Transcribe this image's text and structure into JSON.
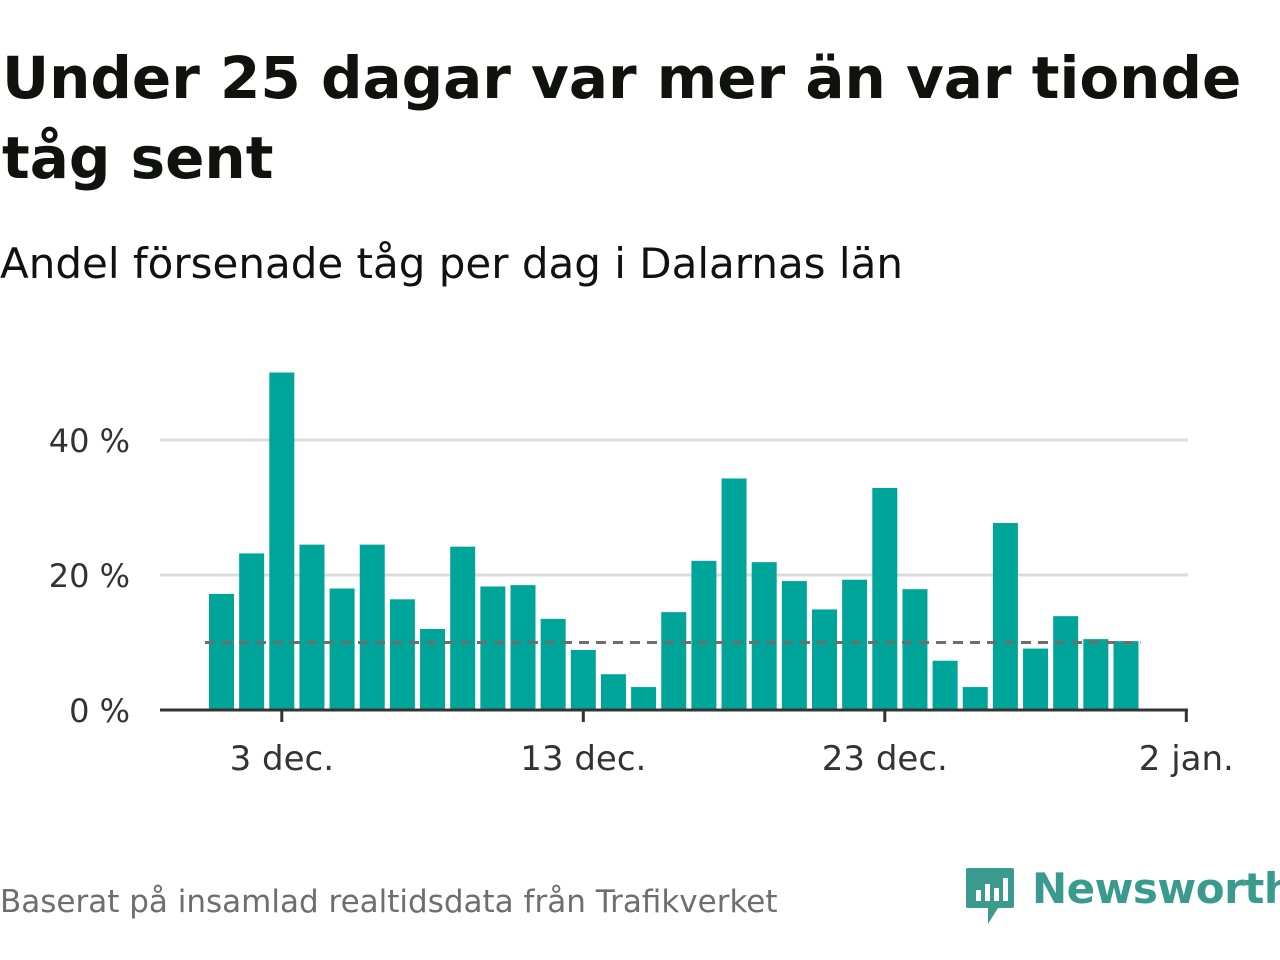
{
  "header": {
    "title": "Under 25 dagar var mer än var tionde tåg sent",
    "subtitle": "Andel försenade tåg per dag i Dalarnas län"
  },
  "footer": {
    "source": "Baserat på insamlad realtidsdata från Trafikverket",
    "logo_text": "Newsworthy"
  },
  "colors": {
    "bar": "#00a59a",
    "reference_line": "#6e6e6e",
    "gridline": "#dcdcdc",
    "axis": "#333333",
    "logo": "#3a9a8e"
  },
  "chart_data": {
    "type": "bar",
    "title": "Under 25 dagar var mer än var tionde tåg sent",
    "subtitle": "Andel försenade tåg per dag i Dalarnas län",
    "x_ticks": [
      {
        "label": "3 dec.",
        "index": 2
      },
      {
        "label": "13 dec.",
        "index": 12
      },
      {
        "label": "23 dec.",
        "index": 22
      },
      {
        "label": "2 jan.",
        "index": 32
      }
    ],
    "y_ticks": [
      {
        "label": "0 %",
        "value": 0
      },
      {
        "label": "20 %",
        "value": 20
      },
      {
        "label": "40 %",
        "value": 40
      }
    ],
    "categories": [
      "1 dec.",
      "2 dec.",
      "3 dec.",
      "4 dec.",
      "5 dec.",
      "6 dec.",
      "7 dec.",
      "8 dec.",
      "9 dec.",
      "10 dec.",
      "11 dec.",
      "12 dec.",
      "13 dec.",
      "14 dec.",
      "15 dec.",
      "16 dec.",
      "17 dec.",
      "18 dec.",
      "19 dec.",
      "20 dec.",
      "21 dec.",
      "22 dec.",
      "23 dec.",
      "24 dec.",
      "25 dec.",
      "26 dec.",
      "27 dec.",
      "28 dec.",
      "29 dec.",
      "30 dec.",
      "31 dec."
    ],
    "values": [
      17.2,
      23.2,
      50.0,
      24.5,
      18.0,
      24.5,
      16.4,
      12.0,
      24.2,
      18.3,
      18.5,
      13.5,
      8.9,
      5.3,
      3.4,
      14.5,
      22.1,
      34.3,
      21.9,
      19.1,
      14.9,
      19.3,
      32.9,
      17.9,
      7.3,
      3.4,
      27.7,
      9.1,
      13.9,
      10.5,
      10.2
    ],
    "reference_value": 10,
    "ylim": [
      0,
      52
    ],
    "grid": true,
    "legend": "none"
  }
}
